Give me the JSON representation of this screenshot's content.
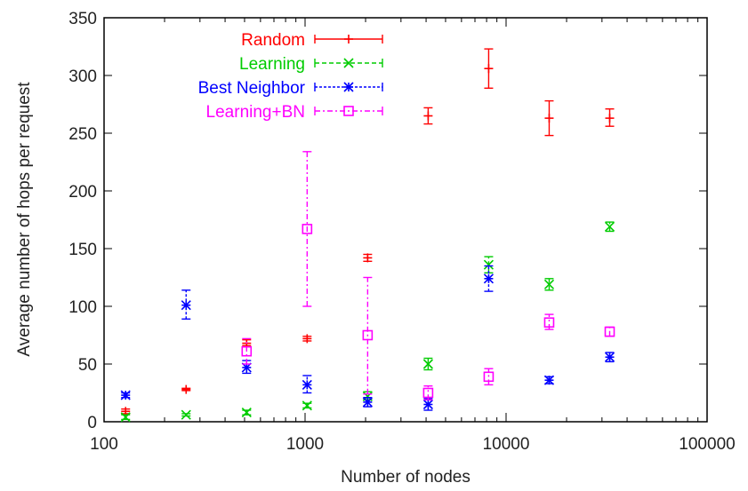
{
  "chart_data": {
    "type": "scatter",
    "xlabel": "Number of nodes",
    "ylabel": "Average number of hops per request",
    "x_scale": "log",
    "xlim": [
      100,
      100000
    ],
    "ylim": [
      0,
      350
    ],
    "x_ticks": [
      100,
      1000,
      10000,
      100000
    ],
    "x_tick_labels": [
      "100",
      "1000",
      "10000",
      "100000"
    ],
    "y_ticks": [
      0,
      50,
      100,
      150,
      200,
      250,
      300,
      350
    ],
    "y_tick_labels": [
      "0",
      "50",
      "100",
      "150",
      "200",
      "250",
      "300",
      "350"
    ],
    "grid": false,
    "legend_position": "top-left",
    "error_bars": true,
    "series": [
      {
        "name": "Random",
        "color": "#ff0000",
        "marker": "plus",
        "line_style": "solid",
        "points": [
          {
            "x": 128,
            "y": 9,
            "low": 7,
            "high": 11
          },
          {
            "x": 256,
            "y": 28,
            "low": 27,
            "high": 29
          },
          {
            "x": 512,
            "y": 68,
            "low": 66,
            "high": 71
          },
          {
            "x": 1024,
            "y": 72,
            "low": 70,
            "high": 74
          },
          {
            "x": 2048,
            "y": 142,
            "low": 139,
            "high": 145
          },
          {
            "x": 4096,
            "y": 265,
            "low": 258,
            "high": 272
          },
          {
            "x": 8192,
            "y": 306,
            "low": 289,
            "high": 323
          },
          {
            "x": 16384,
            "y": 263,
            "low": 248,
            "high": 278
          },
          {
            "x": 32768,
            "y": 263,
            "low": 256,
            "high": 271
          }
        ]
      },
      {
        "name": "Learning",
        "color": "#00cc00",
        "marker": "x",
        "line_style": "dashed",
        "points": [
          {
            "x": 128,
            "y": 4,
            "low": 2,
            "high": 6
          },
          {
            "x": 256,
            "y": 6,
            "low": 5,
            "high": 7
          },
          {
            "x": 512,
            "y": 8,
            "low": 6,
            "high": 10
          },
          {
            "x": 1024,
            "y": 14,
            "low": 12,
            "high": 16
          },
          {
            "x": 2048,
            "y": 22,
            "low": 19,
            "high": 26
          },
          {
            "x": 4096,
            "y": 50,
            "low": 45,
            "high": 55
          },
          {
            "x": 8192,
            "y": 136,
            "low": 129,
            "high": 143
          },
          {
            "x": 16384,
            "y": 119,
            "low": 114,
            "high": 124
          },
          {
            "x": 32768,
            "y": 169,
            "low": 165,
            "high": 173
          }
        ]
      },
      {
        "name": "Best Neighbor",
        "color": "#0000ff",
        "marker": "star",
        "line_style": "dotted",
        "points": [
          {
            "x": 128,
            "y": 23,
            "low": 21,
            "high": 25
          },
          {
            "x": 256,
            "y": 101,
            "low": 89,
            "high": 114
          },
          {
            "x": 512,
            "y": 47,
            "low": 42,
            "high": 53
          },
          {
            "x": 1024,
            "y": 32,
            "low": 25,
            "high": 40
          },
          {
            "x": 2048,
            "y": 17,
            "low": 13,
            "high": 21
          },
          {
            "x": 4096,
            "y": 15,
            "low": 10,
            "high": 20
          },
          {
            "x": 8192,
            "y": 124,
            "low": 113,
            "high": 135
          },
          {
            "x": 16384,
            "y": 36,
            "low": 33,
            "high": 39
          },
          {
            "x": 32768,
            "y": 56,
            "low": 52,
            "high": 60
          }
        ]
      },
      {
        "name": "Learning+BN",
        "color": "#ff00ff",
        "marker": "square",
        "line_style": "dash-dot",
        "points": [
          {
            "x": 512,
            "y": 61,
            "low": 50,
            "high": 72
          },
          {
            "x": 1024,
            "y": 167,
            "low": 100,
            "high": 234
          },
          {
            "x": 2048,
            "y": 75,
            "low": 24,
            "high": 125
          },
          {
            "x": 4096,
            "y": 25,
            "low": 19,
            "high": 31
          },
          {
            "x": 8192,
            "y": 39,
            "low": 32,
            "high": 46
          },
          {
            "x": 16384,
            "y": 86,
            "low": 80,
            "high": 93
          },
          {
            "x": 32768,
            "y": 78,
            "low": 74,
            "high": 82
          }
        ]
      }
    ]
  }
}
